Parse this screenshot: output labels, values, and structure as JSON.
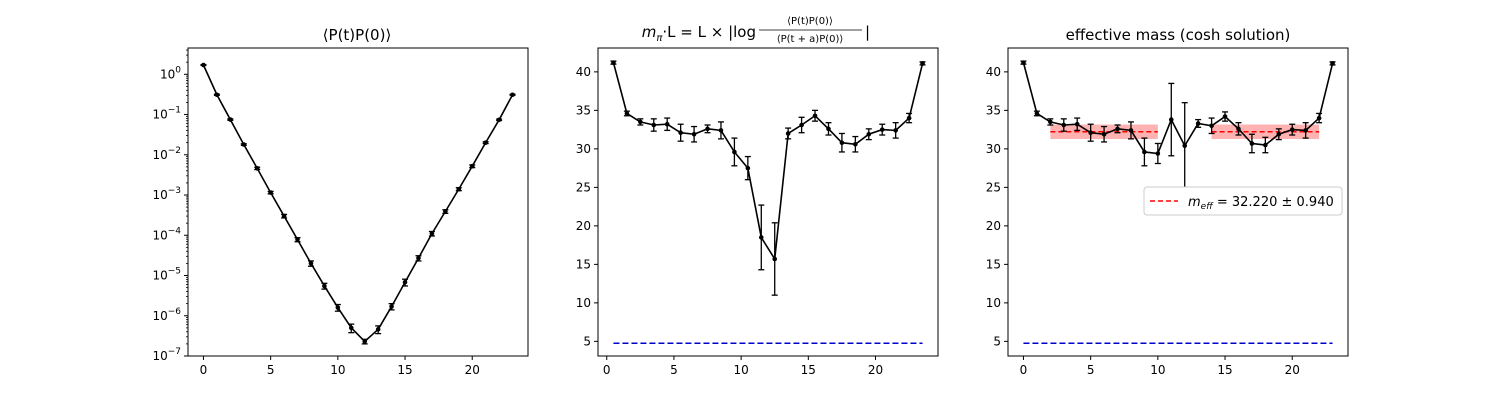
{
  "chart_data": [
    {
      "type": "line",
      "title": "⟨P(t)P(0)⟩",
      "xlabel": "",
      "ylabel": "",
      "yscale": "log",
      "xlim": [
        -1.15,
        24.15
      ],
      "ylim": [
        1e-07,
        4.5
      ],
      "xticks": [
        0,
        5,
        10,
        15,
        20
      ],
      "yticks": [
        {
          "value": 1,
          "base": "10",
          "exp": "0"
        },
        {
          "value": 0.1,
          "base": "10",
          "exp": "−1"
        },
        {
          "value": 0.01,
          "base": "10",
          "exp": "−2"
        },
        {
          "value": 0.001,
          "base": "10",
          "exp": "−3"
        },
        {
          "value": 0.0001,
          "base": "10",
          "exp": "−4"
        },
        {
          "value": 1e-05,
          "base": "10",
          "exp": "−5"
        },
        {
          "value": 1e-06,
          "base": "10",
          "exp": "−6"
        },
        {
          "value": 1e-07,
          "base": "10",
          "exp": "−7"
        }
      ],
      "series": [
        {
          "color": "#000000",
          "x": [
            0,
            1,
            2,
            3,
            4,
            5,
            6,
            7,
            8,
            9,
            10,
            11,
            12,
            13,
            14,
            15,
            16,
            17,
            18,
            19,
            20,
            21,
            22,
            23
          ],
          "y": [
            1.7,
            0.31,
            0.075,
            0.018,
            0.0046,
            0.00115,
            0.0003,
            7.8e-05,
            2e-05,
            5.5e-06,
            1.6e-06,
            5e-07,
            2.3e-07,
            4.6e-07,
            1.7e-06,
            6.8e-06,
            2.7e-05,
            0.00011,
            0.00039,
            0.0014,
            0.0052,
            0.02,
            0.074,
            0.31
          ],
          "yerr": [
            0.04,
            0.01,
            0.003,
            0.0008,
            0.0003,
            8e-05,
            3e-05,
            9e-06,
            3e-06,
            9e-07,
            3e-07,
            1.2e-07,
            3e-08,
            1e-07,
            3e-07,
            1.3e-06,
            4e-06,
            1.4e-05,
            4e-05,
            0.00012,
            0.0004,
            0.001,
            0.003,
            0.008
          ]
        }
      ],
      "grid": false
    },
    {
      "type": "line",
      "title": "m_π·L = L × |log ⟨P(t)P(0)⟩ / ⟨P(t+a)P(0)⟩|",
      "title_parts": {
        "lhs_m": "m",
        "lhs_sub": "π",
        "lhs_rest": "·L = L × |log",
        "numerator": "⟨P(t)P(0)⟩",
        "denominator": "⟨P(t + a)P(0)⟩",
        "close": "|"
      },
      "xlabel": "",
      "ylabel": "",
      "xlim": [
        -0.65,
        24.65
      ],
      "ylim": [
        3.1,
        43.1
      ],
      "xticks": [
        0,
        5,
        10,
        15,
        20
      ],
      "yticks": [
        5,
        10,
        15,
        20,
        25,
        30,
        35,
        40
      ],
      "series": [
        {
          "color": "#000000",
          "x": [
            0.5,
            1.5,
            2.5,
            3.5,
            4.5,
            5.5,
            6.5,
            7.5,
            8.5,
            9.5,
            10.5,
            11.5,
            12.5,
            13.5,
            14.5,
            15.5,
            16.5,
            17.5,
            18.5,
            19.5,
            20.5,
            21.5,
            22.5,
            23.5
          ],
          "y": [
            41.2,
            34.6,
            33.5,
            33.1,
            33.2,
            32.1,
            31.9,
            32.6,
            32.4,
            29.6,
            27.5,
            18.5,
            15.7,
            32.0,
            33.1,
            34.3,
            32.6,
            30.8,
            30.6,
            31.9,
            32.5,
            32.4,
            34.0,
            41.1
          ],
          "yerr": [
            0.2,
            0.3,
            0.4,
            0.8,
            0.8,
            1.1,
            1.0,
            0.5,
            1.1,
            1.8,
            1.5,
            4.2,
            4.7,
            0.7,
            1.0,
            0.7,
            0.8,
            1.2,
            1.0,
            0.7,
            0.7,
            1.0,
            0.6,
            0.2
          ]
        },
        {
          "color": "#0000cc",
          "style": "dashed",
          "x": [
            0.5,
            23.5
          ],
          "y": [
            4.75,
            4.75
          ]
        }
      ],
      "grid": false
    },
    {
      "type": "line",
      "title": "effective mass (cosh solution)",
      "xlabel": "",
      "ylabel": "",
      "xlim": [
        -1.15,
        24.15
      ],
      "ylim": [
        3.1,
        43.1
      ],
      "xticks": [
        0,
        5,
        10,
        15,
        20
      ],
      "yticks": [
        5,
        10,
        15,
        20,
        25,
        30,
        35,
        40
      ],
      "series": [
        {
          "color": "#000000",
          "x": [
            0,
            1,
            2,
            3,
            4,
            5,
            6,
            7,
            8,
            9,
            10,
            11,
            12,
            13,
            14,
            15,
            16,
            17,
            18,
            19,
            20,
            21,
            22,
            23
          ],
          "y": [
            41.2,
            34.6,
            33.5,
            33.1,
            33.2,
            32.1,
            31.9,
            32.6,
            32.4,
            29.6,
            29.4,
            33.8,
            30.4,
            33.3,
            33.0,
            34.2,
            32.6,
            30.7,
            30.5,
            31.9,
            32.5,
            32.4,
            34.0,
            41.1
          ],
          "yerr": [
            0.2,
            0.3,
            0.4,
            0.8,
            0.8,
            1.1,
            1.0,
            0.5,
            1.1,
            1.8,
            1.3,
            4.7,
            5.6,
            0.5,
            1.0,
            0.6,
            0.8,
            1.2,
            1.0,
            0.7,
            0.7,
            1.0,
            0.6,
            0.2
          ]
        },
        {
          "color": "#0000cc",
          "style": "dashed",
          "x": [
            0,
            23
          ],
          "y": [
            4.75,
            4.75
          ]
        }
      ],
      "fit_bands": [
        {
          "x0": 2,
          "x1": 10,
          "center": 32.22,
          "err": 0.94
        },
        {
          "x0": 14,
          "x1": 22,
          "center": 32.22,
          "err": 0.94
        }
      ],
      "fit_color": "#ff0000",
      "legend": {
        "placement": "right",
        "entry_prefix": "m",
        "entry_sub": "eff",
        "entry_rest": " = 32.220 ± 0.940"
      },
      "grid": false
    }
  ]
}
